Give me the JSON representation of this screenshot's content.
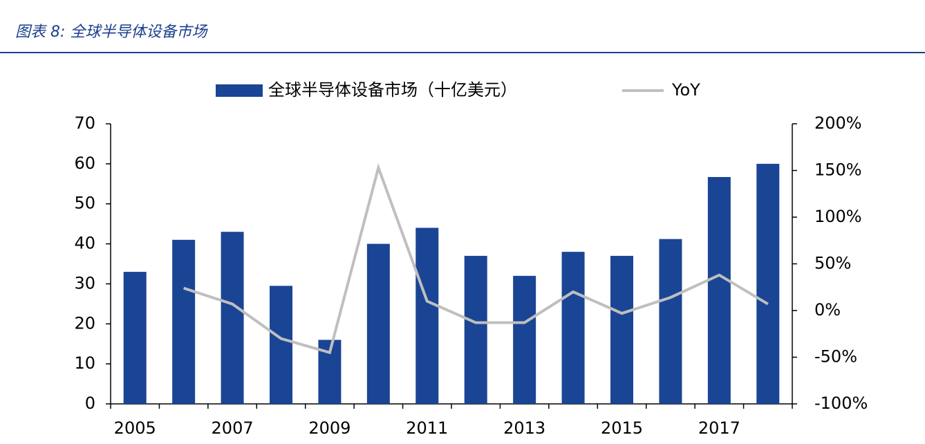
{
  "chart_data": {
    "type": "bar-line",
    "title": "图表 8:  全球半导体设备市场",
    "categories": [
      "2005",
      null,
      "2007",
      null,
      "2009",
      null,
      "2011",
      null,
      "2013",
      null,
      "2015",
      null,
      "2017",
      null
    ],
    "series": [
      {
        "name": "全球半导体设备市场（十亿美元）",
        "type": "bar",
        "color": "#1a4594",
        "values": [
          33,
          41,
          43,
          29.5,
          16,
          40,
          44,
          37,
          32,
          38,
          37,
          41.2,
          56.7,
          60
        ]
      },
      {
        "name": "YoY",
        "type": "line",
        "axis": "y2",
        "color": "#bfbfbf",
        "values": [
          null,
          24,
          7,
          -30,
          -45,
          153,
          10,
          -13,
          -13,
          20,
          -3,
          14,
          38,
          7
        ]
      }
    ],
    "ylim": [
      0,
      70
    ],
    "yticks": [
      0,
      10,
      20,
      30,
      40,
      50,
      60,
      70
    ],
    "y2lim": [
      -100,
      200
    ],
    "y2ticks": [
      {
        "value": -100,
        "label": "-100%"
      },
      {
        "value": -50,
        "label": "-50%"
      },
      {
        "value": 0,
        "label": "0%"
      },
      {
        "value": 50,
        "label": "50%"
      },
      {
        "value": 100,
        "label": "100%"
      },
      {
        "value": 150,
        "label": "150%"
      },
      {
        "value": 200,
        "label": "200%"
      }
    ],
    "grid": false
  }
}
